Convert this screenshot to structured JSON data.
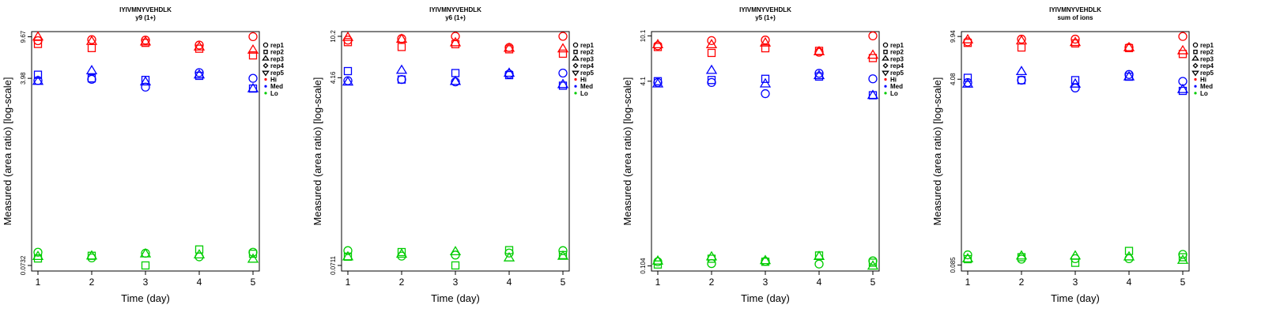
{
  "colors": {
    "Hi": "#ff0000",
    "Med": "#0000ff",
    "Lo": "#00cc00",
    "axis": "#000000"
  },
  "legend": {
    "reps": [
      {
        "label": "rep1",
        "shape": "circle"
      },
      {
        "label": "rep2",
        "shape": "square"
      },
      {
        "label": "rep3",
        "shape": "triangle-up"
      },
      {
        "label": "rep4",
        "shape": "diamond"
      },
      {
        "label": "rep5",
        "shape": "triangle-down"
      }
    ],
    "groups": [
      {
        "label": "Hi",
        "color": "#ff0000"
      },
      {
        "label": "Med",
        "color": "#0000ff"
      },
      {
        "label": "Lo",
        "color": "#00cc00"
      }
    ]
  },
  "chart_data": [
    {
      "type": "scatter",
      "title": "IYIVMNYVEHDLK",
      "subtitle": "y9 (1+)",
      "xlabel": "Time (day)",
      "ylabel": "Measured (area ratio) [log-scale]",
      "scale": "log",
      "yticks": [
        "0.0732",
        "3.98",
        "9.67"
      ],
      "ylim": [
        0.065,
        10.8
      ],
      "x": [
        1,
        2,
        3,
        4,
        5
      ],
      "series": [
        {
          "group": "Hi",
          "rep": "rep1",
          "values": [
            8.9,
            9.1,
            9.0,
            8.1,
            9.7
          ]
        },
        {
          "group": "Hi",
          "rep": "rep2",
          "values": [
            8.3,
            7.6,
            8.5,
            7.5,
            6.5
          ]
        },
        {
          "group": "Hi",
          "rep": "rep3",
          "values": [
            9.67,
            8.8,
            8.7,
            7.8,
            7.3
          ]
        },
        {
          "group": "Med",
          "rep": "rep1",
          "values": [
            3.8,
            3.9,
            3.3,
            4.5,
            3.98
          ]
        },
        {
          "group": "Med",
          "rep": "rep2",
          "values": [
            4.3,
            3.98,
            3.85,
            4.2,
            3.2
          ]
        },
        {
          "group": "Med",
          "rep": "rep3",
          "values": [
            3.75,
            4.7,
            3.7,
            4.3,
            3.2
          ]
        },
        {
          "group": "Lo",
          "rep": "rep1",
          "values": [
            0.097,
            0.086,
            0.095,
            0.088,
            0.097
          ]
        },
        {
          "group": "Lo",
          "rep": "rep2",
          "values": [
            0.085,
            0.09,
            0.0732,
            0.103,
            0.094
          ]
        },
        {
          "group": "Lo",
          "rep": "rep3",
          "values": [
            0.089,
            0.09,
            0.094,
            0.092,
            0.084
          ]
        }
      ]
    },
    {
      "type": "scatter",
      "title": "IYIVMNYVEHDLK",
      "subtitle": "y6 (1+)",
      "xlabel": "Time (day)",
      "ylabel": "Measured (area ratio) [log-scale]",
      "scale": "log",
      "yticks": [
        "0.0711",
        "4.16",
        "10.2"
      ],
      "ylim": [
        0.063,
        11.3
      ],
      "x": [
        1,
        2,
        3,
        4,
        5
      ],
      "series": [
        {
          "group": "Hi",
          "rep": "rep1",
          "values": [
            9.4,
            9.7,
            10.2,
            8.0,
            10.2
          ]
        },
        {
          "group": "Hi",
          "rep": "rep2",
          "values": [
            9.0,
            8.1,
            8.6,
            7.7,
            7.0
          ]
        },
        {
          "group": "Hi",
          "rep": "rep3",
          "values": [
            10.0,
            9.6,
            8.9,
            7.9,
            7.8
          ]
        },
        {
          "group": "Med",
          "rep": "rep1",
          "values": [
            3.9,
            4.0,
            3.8,
            4.5,
            4.6
          ]
        },
        {
          "group": "Med",
          "rep": "rep2",
          "values": [
            4.8,
            4.0,
            4.6,
            4.4,
            3.5
          ]
        },
        {
          "group": "Med",
          "rep": "rep3",
          "values": [
            3.8,
            4.9,
            3.85,
            4.6,
            3.6
          ]
        },
        {
          "group": "Lo",
          "rep": "rep1",
          "values": [
            0.098,
            0.087,
            0.089,
            0.093,
            0.098
          ]
        },
        {
          "group": "Lo",
          "rep": "rep2",
          "values": [
            0.086,
            0.095,
            0.0711,
            0.099,
            0.089
          ]
        },
        {
          "group": "Lo",
          "rep": "rep3",
          "values": [
            0.086,
            0.091,
            0.096,
            0.084,
            0.087
          ]
        }
      ]
    },
    {
      "type": "scatter",
      "title": "IYIVMNYVEHDLK",
      "subtitle": "y5 (1+)",
      "xlabel": "Time (day)",
      "ylabel": "Measured (area ratio) [log-scale]",
      "scale": "log",
      "yticks": [
        "0.104",
        "4.1",
        "10.1"
      ],
      "ylim": [
        0.094,
        11.0
      ],
      "x": [
        1,
        2,
        3,
        4,
        5
      ],
      "series": [
        {
          "group": "Hi",
          "rep": "rep1",
          "values": [
            8.3,
            9.2,
            9.3,
            7.3,
            10.1
          ]
        },
        {
          "group": "Hi",
          "rep": "rep2",
          "values": [
            8.1,
            7.2,
            7.9,
            7.5,
            6.5
          ]
        },
        {
          "group": "Hi",
          "rep": "rep3",
          "values": [
            8.5,
            8.5,
            8.8,
            7.4,
            6.9
          ]
        },
        {
          "group": "Med",
          "rep": "rep1",
          "values": [
            4.0,
            4.0,
            3.2,
            4.8,
            4.3
          ]
        },
        {
          "group": "Med",
          "rep": "rep2",
          "values": [
            4.1,
            4.2,
            4.3,
            4.5,
            3.1
          ]
        },
        {
          "group": "Med",
          "rep": "rep3",
          "values": [
            3.9,
            5.1,
            3.9,
            4.6,
            3.1
          ]
        },
        {
          "group": "Lo",
          "rep": "rep1",
          "values": [
            0.113,
            0.109,
            0.114,
            0.108,
            0.115
          ]
        },
        {
          "group": "Lo",
          "rep": "rep2",
          "values": [
            0.107,
            0.12,
            0.113,
            0.128,
            0.111
          ]
        },
        {
          "group": "Lo",
          "rep": "rep3",
          "values": [
            0.115,
            0.125,
            0.116,
            0.126,
            0.104
          ]
        }
      ]
    },
    {
      "type": "scatter",
      "title": "IYIVMNYVEHDLK",
      "subtitle": "sum of ions",
      "xlabel": "Time (day)",
      "ylabel": "Measured (area ratio) [log-scale]",
      "scale": "log",
      "yticks": [
        "0.085",
        "4.08",
        "9.94"
      ],
      "ylim": [
        0.075,
        11.0
      ],
      "x": [
        1,
        2,
        3,
        4,
        5
      ],
      "series": [
        {
          "group": "Hi",
          "rep": "rep1",
          "values": [
            8.9,
            9.4,
            9.4,
            7.9,
            9.94
          ]
        },
        {
          "group": "Hi",
          "rep": "rep2",
          "values": [
            8.7,
            7.9,
            8.6,
            7.8,
            6.9
          ]
        },
        {
          "group": "Hi",
          "rep": "rep3",
          "values": [
            9.3,
            9.1,
            8.8,
            7.9,
            7.4
          ]
        },
        {
          "group": "Med",
          "rep": "rep1",
          "values": [
            3.8,
            4.0,
            3.4,
            4.5,
            3.9
          ]
        },
        {
          "group": "Med",
          "rep": "rep2",
          "values": [
            4.2,
            4.0,
            4.0,
            4.3,
            3.2
          ]
        },
        {
          "group": "Med",
          "rep": "rep3",
          "values": [
            3.7,
            4.8,
            3.7,
            4.3,
            3.3
          ]
        },
        {
          "group": "Lo",
          "rep": "rep1",
          "values": [
            0.105,
            0.096,
            0.097,
            0.097,
            0.106
          ]
        },
        {
          "group": "Lo",
          "rep": "rep2",
          "values": [
            0.096,
            0.1,
            0.089,
            0.114,
            0.1
          ]
        },
        {
          "group": "Lo",
          "rep": "rep3",
          "values": [
            0.097,
            0.103,
            0.103,
            0.101,
            0.094
          ]
        }
      ]
    }
  ]
}
